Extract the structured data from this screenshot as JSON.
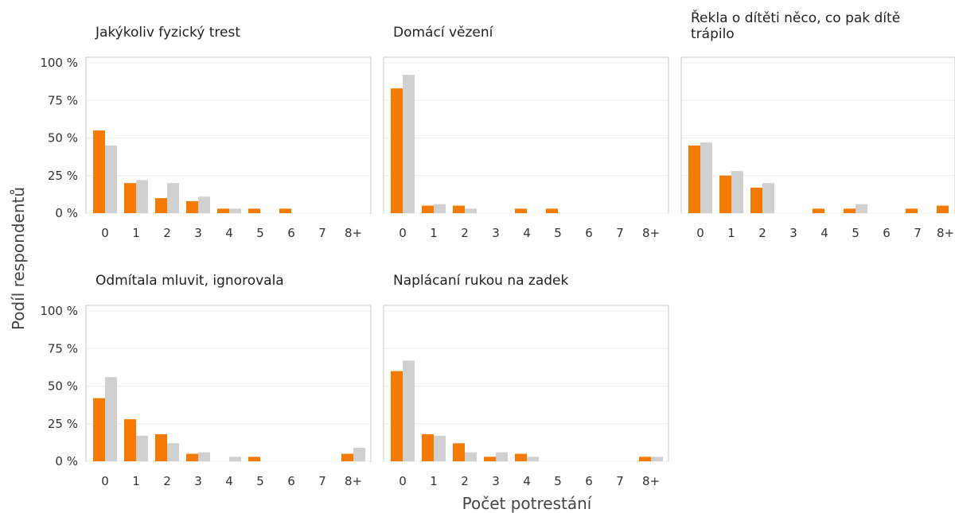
{
  "chart_data": {
    "type": "bar",
    "ylabel": "Podíl respondentů",
    "xlabel": "Počet potrestání",
    "categories": [
      "0",
      "1",
      "2",
      "3",
      "4",
      "5",
      "6",
      "7",
      "8+"
    ],
    "yticks": [
      "0 %",
      "25 %",
      "50 %",
      "75 %",
      "100 %"
    ],
    "ylim": [
      0,
      100
    ],
    "grid": true,
    "colors": [
      "#f47a00",
      "#d0d0d0"
    ],
    "panels": [
      {
        "title": "Jakýkoliv fyzický trest",
        "series": [
          {
            "values": [
              55,
              20,
              10,
              8,
              3,
              3,
              3,
              0,
              0
            ]
          },
          {
            "values": [
              45,
              22,
              20,
              11,
              3,
              0,
              0,
              0,
              0
            ]
          }
        ]
      },
      {
        "title": "Domácí vězení",
        "series": [
          {
            "values": [
              83,
              5,
              5,
              0,
              3,
              3,
              0,
              0,
              0
            ]
          },
          {
            "values": [
              92,
              6,
              3,
              0,
              0,
              0,
              0,
              0,
              0
            ]
          }
        ]
      },
      {
        "title": "Řekla o dítěti něco, co pak dítě trápilo",
        "series": [
          {
            "values": [
              45,
              25,
              17,
              0,
              3,
              3,
              0,
              3,
              5
            ]
          },
          {
            "values": [
              47,
              28,
              20,
              0,
              0,
              6,
              0,
              0,
              0
            ]
          }
        ]
      },
      {
        "title": "Odmítala mluvit, ignorovala",
        "series": [
          {
            "values": [
              42,
              28,
              18,
              5,
              0,
              3,
              0,
              0,
              5
            ]
          },
          {
            "values": [
              56,
              17,
              12,
              6,
              3,
              0,
              0,
              0,
              9
            ]
          }
        ]
      },
      {
        "title": "Naplácaní rukou na zadek",
        "series": [
          {
            "values": [
              60,
              18,
              12,
              3,
              5,
              0,
              0,
              0,
              3
            ]
          },
          {
            "values": [
              67,
              17,
              6,
              6,
              3,
              0,
              0,
              0,
              3
            ]
          }
        ]
      }
    ]
  }
}
